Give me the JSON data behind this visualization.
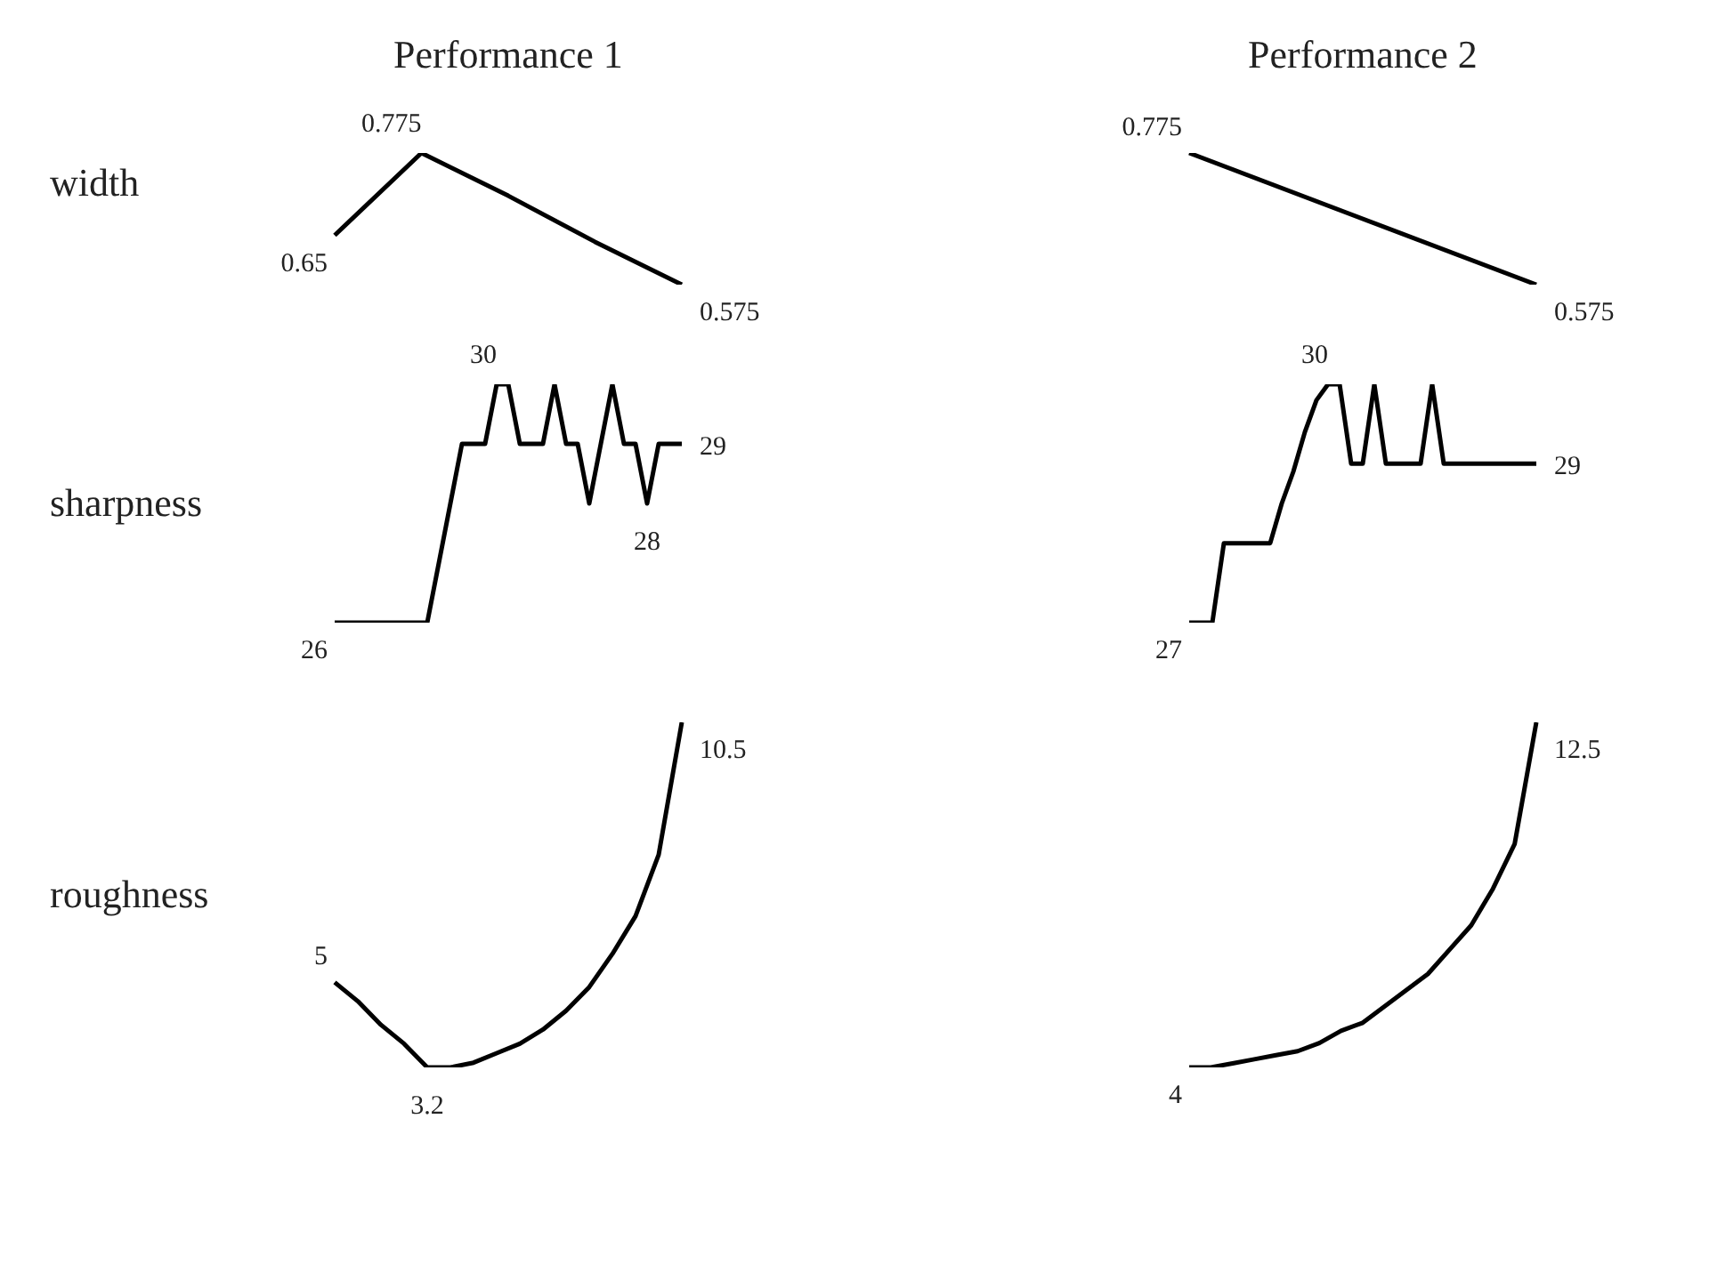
{
  "chart_data": [
    {
      "type": "line",
      "title": "Performance 1",
      "ylabel": "width",
      "categories": [
        null,
        null,
        null,
        null,
        null
      ],
      "values": [
        0.65,
        0.775,
        0.71,
        0.64,
        0.575
      ],
      "value_labels": [
        "0.65",
        "0.775",
        null,
        null,
        "0.575"
      ],
      "color": "#000000",
      "tick_labels": false,
      "marker": "none"
    },
    {
      "type": "line",
      "title": "Performance 2",
      "categories": [
        null,
        null
      ],
      "values": [
        0.775,
        0.575
      ],
      "value_labels": [
        "0.775",
        "0.575"
      ],
      "color": "#000000",
      "tick_labels": false,
      "marker": "none"
    },
    {
      "type": "line",
      "ylabel": "sharpness",
      "categories": [
        null,
        null,
        null,
        null,
        null,
        null,
        null,
        null,
        null,
        null,
        null,
        null,
        null,
        null,
        null,
        null,
        null,
        null,
        null,
        null,
        null,
        null,
        null,
        null,
        null,
        null,
        null,
        null,
        null,
        null,
        null
      ],
      "values": [
        26,
        26,
        26,
        26,
        26,
        26,
        26,
        26,
        26,
        27,
        28,
        29,
        29,
        29,
        30,
        30,
        29,
        29,
        29,
        30,
        29,
        29,
        28,
        29,
        30,
        29,
        29,
        28,
        29,
        29,
        29
      ],
      "value_labels": [
        "26",
        null,
        null,
        null,
        null,
        null,
        null,
        null,
        null,
        null,
        null,
        null,
        null,
        null,
        "30",
        null,
        null,
        null,
        null,
        null,
        null,
        null,
        null,
        null,
        null,
        null,
        null,
        "28",
        null,
        null,
        "29"
      ],
      "color": "#000000",
      "tick_labels": false,
      "marker": "none"
    },
    {
      "type": "line",
      "categories": [
        null,
        null,
        null,
        null,
        null,
        null,
        null,
        null,
        null,
        null,
        null,
        null,
        null,
        null,
        null,
        null,
        null,
        null,
        null,
        null,
        null,
        null,
        null,
        null,
        null,
        null,
        null,
        null,
        null,
        null,
        null
      ],
      "values": [
        27,
        27,
        27,
        28,
        28,
        28,
        28,
        28,
        28.5,
        28.9,
        29.4,
        29.8,
        30,
        30,
        29,
        29,
        30,
        29,
        29,
        29,
        29,
        30,
        29,
        29,
        29,
        29,
        29,
        29,
        29,
        29,
        29
      ],
      "value_labels": [
        "27",
        null,
        null,
        null,
        null,
        null,
        null,
        null,
        null,
        null,
        null,
        null,
        "30",
        null,
        null,
        null,
        null,
        null,
        null,
        null,
        null,
        null,
        null,
        null,
        null,
        null,
        null,
        null,
        null,
        null,
        "29"
      ],
      "color": "#000000",
      "tick_labels": false,
      "marker": "none"
    },
    {
      "type": "line",
      "ylabel": "roughness",
      "categories": [
        null,
        null,
        null,
        null,
        null,
        null,
        null,
        null,
        null,
        null,
        null,
        null,
        null,
        null,
        null,
        null
      ],
      "values": [
        5,
        4.6,
        4.1,
        3.7,
        3.2,
        3.2,
        3.3,
        3.5,
        3.7,
        4.0,
        4.4,
        4.9,
        5.6,
        6.4,
        7.7,
        10.5
      ],
      "value_labels": [
        "5",
        null,
        null,
        null,
        "3.2",
        null,
        null,
        null,
        null,
        null,
        null,
        null,
        null,
        null,
        null,
        "10.5"
      ],
      "color": "#000000",
      "tick_labels": false,
      "marker": "none"
    },
    {
      "type": "line",
      "categories": [
        null,
        null,
        null,
        null,
        null,
        null,
        null,
        null,
        null,
        null,
        null,
        null,
        null,
        null,
        null,
        null,
        null
      ],
      "values": [
        4,
        4,
        4.1,
        4.2,
        4.3,
        4.4,
        4.6,
        4.9,
        5.1,
        5.5,
        5.9,
        6.3,
        6.9,
        7.5,
        8.4,
        9.5,
        12.5
      ],
      "value_labels": [
        "4",
        null,
        null,
        null,
        null,
        null,
        null,
        null,
        null,
        null,
        null,
        null,
        null,
        null,
        null,
        null,
        "12.5"
      ],
      "color": "#000000",
      "tick_labels": false,
      "marker": "none"
    }
  ]
}
